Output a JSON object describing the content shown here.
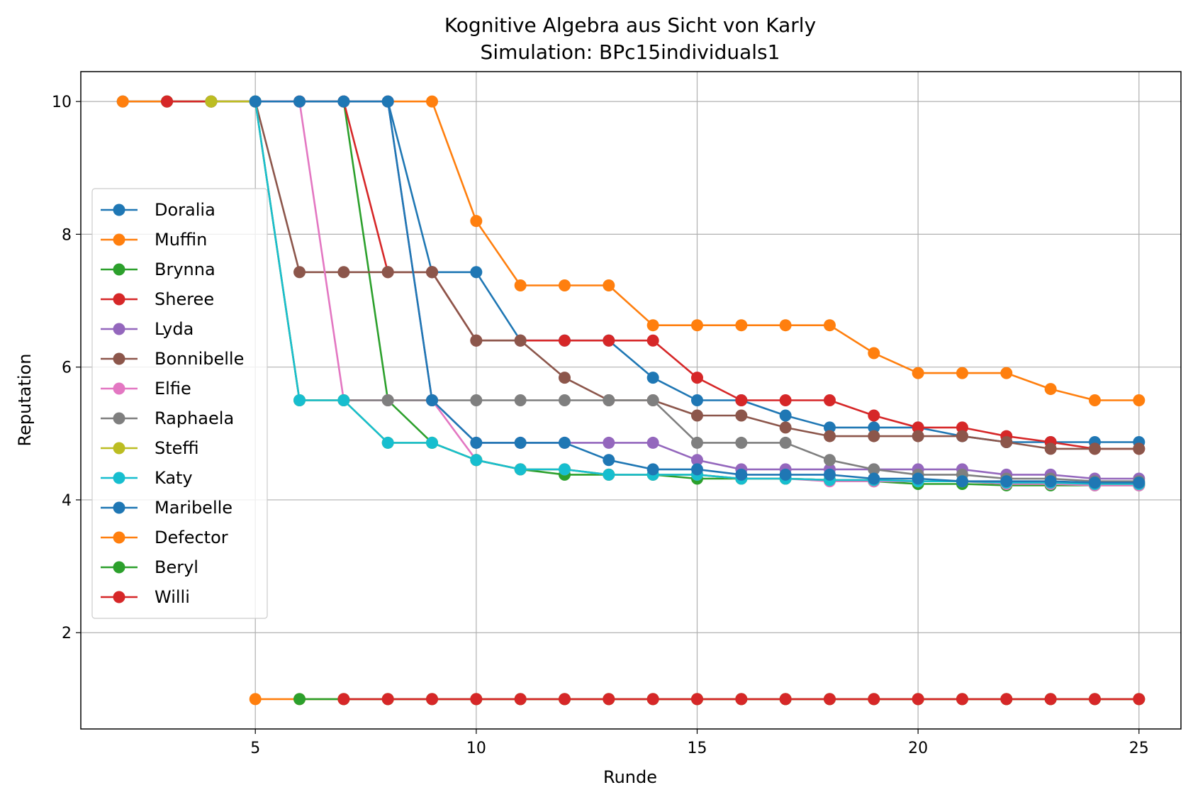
{
  "chart_data": {
    "type": "line",
    "title": "Kognitive Algebra aus Sicht von Karly",
    "subtitle": "Simulation: BPc15individuals1",
    "xlabel": "Runde",
    "ylabel": "Reputation",
    "xlim": [
      1.05,
      25.95
    ],
    "ylim": [
      0.55,
      10.45
    ],
    "xticks": [
      5,
      10,
      15,
      20,
      25
    ],
    "yticks": [
      2,
      4,
      6,
      8,
      10
    ],
    "grid": true,
    "legend_position": "center-left",
    "series": [
      {
        "name": "Doralia",
        "color": "#1f77b4",
        "x": [
          2,
          3,
          4,
          5,
          6,
          7,
          8,
          9,
          10,
          11,
          12,
          13,
          14,
          15,
          16,
          17,
          18,
          19,
          20,
          21,
          22,
          23,
          24,
          25
        ],
        "y": [
          10,
          10,
          10,
          10,
          10,
          10,
          10,
          7.43,
          7.43,
          6.4,
          6.4,
          6.4,
          5.84,
          5.5,
          5.5,
          5.27,
          5.09,
          5.09,
          5.09,
          4.96,
          4.87,
          4.87,
          4.87,
          4.87
        ]
      },
      {
        "name": "Muffin",
        "color": "#ff7f0e",
        "x": [
          2,
          3,
          4,
          5,
          6,
          7,
          8,
          9,
          10,
          11,
          12,
          13,
          14,
          15,
          16,
          17,
          18,
          19,
          20,
          21,
          22,
          23,
          24,
          25
        ],
        "y": [
          10,
          10,
          10,
          10,
          10,
          10,
          10,
          10,
          8.2,
          7.23,
          7.23,
          7.23,
          6.63,
          6.63,
          6.63,
          6.63,
          6.63,
          6.21,
          5.91,
          5.91,
          5.91,
          5.67,
          5.5,
          5.5
        ]
      },
      {
        "name": "Brynna",
        "color": "#2ca02c",
        "x": [
          3,
          4,
          5,
          6,
          7,
          8,
          9,
          10,
          11,
          12,
          13,
          14,
          15,
          16,
          17,
          18,
          19,
          20,
          21,
          22,
          23,
          24,
          25
        ],
        "y": [
          10,
          10,
          10,
          10,
          10,
          5.5,
          4.86,
          4.6,
          4.46,
          4.38,
          4.38,
          4.38,
          4.32,
          4.32,
          4.32,
          4.3,
          4.28,
          4.24,
          4.24,
          4.22,
          4.22,
          4.22,
          4.22
        ]
      },
      {
        "name": "Sheree",
        "color": "#d62728",
        "x": [
          3,
          4,
          5,
          6,
          7,
          8,
          9,
          10,
          11,
          12,
          13,
          14,
          15,
          16,
          17,
          18,
          19,
          20,
          21,
          22,
          23,
          24,
          25
        ],
        "y": [
          10,
          10,
          10,
          10,
          10,
          7.43,
          7.43,
          6.4,
          6.4,
          6.4,
          6.4,
          6.4,
          5.84,
          5.5,
          5.5,
          5.5,
          5.27,
          5.09,
          5.09,
          4.96,
          4.87,
          4.77,
          4.77
        ]
      },
      {
        "name": "Lyda",
        "color": "#9467bd",
        "x": [
          4,
          5,
          6,
          7,
          8,
          9,
          10,
          11,
          12,
          13,
          14,
          15,
          16,
          17,
          18,
          19,
          20,
          21,
          22,
          23,
          24,
          25
        ],
        "y": [
          10,
          10,
          10,
          10,
          10,
          5.5,
          4.86,
          4.86,
          4.86,
          4.86,
          4.86,
          4.6,
          4.46,
          4.46,
          4.46,
          4.46,
          4.46,
          4.46,
          4.38,
          4.38,
          4.32,
          4.32
        ]
      },
      {
        "name": "Bonnibelle",
        "color": "#8c564b",
        "x": [
          4,
          5,
          6,
          7,
          8,
          9,
          10,
          11,
          12,
          13,
          14,
          15,
          16,
          17,
          18,
          19,
          20,
          21,
          22,
          23,
          24,
          25
        ],
        "y": [
          10,
          10,
          7.43,
          7.43,
          7.43,
          7.43,
          6.4,
          6.4,
          5.84,
          5.5,
          5.5,
          5.27,
          5.27,
          5.09,
          4.96,
          4.96,
          4.96,
          4.96,
          4.87,
          4.77,
          4.77,
          4.77
        ]
      },
      {
        "name": "Elfie",
        "color": "#e377c2",
        "x": [
          5,
          6,
          7,
          8,
          9,
          10,
          11,
          12,
          13,
          14,
          15,
          16,
          17,
          18,
          19,
          20,
          21,
          22,
          23,
          24,
          25
        ],
        "y": [
          10,
          10,
          5.5,
          5.5,
          5.5,
          4.6,
          4.46,
          4.46,
          4.38,
          4.38,
          4.38,
          4.32,
          4.32,
          4.28,
          4.28,
          4.28,
          4.28,
          4.24,
          4.24,
          4.22,
          4.22
        ]
      },
      {
        "name": "Raphaela",
        "color": "#7f7f7f",
        "x": [
          5,
          6,
          7,
          8,
          9,
          10,
          11,
          12,
          13,
          14,
          15,
          16,
          17,
          18,
          19,
          20,
          21,
          22,
          23,
          24,
          25
        ],
        "y": [
          10,
          5.5,
          5.5,
          5.5,
          5.5,
          5.5,
          5.5,
          5.5,
          5.5,
          5.5,
          4.86,
          4.86,
          4.86,
          4.6,
          4.46,
          4.38,
          4.38,
          4.32,
          4.32,
          4.28,
          4.28
        ]
      },
      {
        "name": "Steffi",
        "color": "#bcbd22",
        "x": [
          4,
          5,
          6,
          7,
          8,
          9,
          10,
          11,
          12,
          13,
          14,
          15,
          16,
          17,
          18,
          19,
          20,
          21,
          22,
          23,
          24,
          25
        ],
        "y": [
          10,
          10,
          5.5,
          5.5,
          4.86,
          4.86,
          4.6,
          4.46,
          4.46,
          4.38,
          4.38,
          4.38,
          4.32,
          4.32,
          4.3,
          4.3,
          4.28,
          4.28,
          4.26,
          4.26,
          4.24,
          4.24
        ]
      },
      {
        "name": "Katy",
        "color": "#17becf",
        "x": [
          5,
          6,
          7,
          8,
          9,
          10,
          11,
          12,
          13,
          14,
          15,
          16,
          17,
          18,
          19,
          20,
          21,
          22,
          23,
          24,
          25
        ],
        "y": [
          10,
          5.5,
          5.5,
          4.86,
          4.86,
          4.6,
          4.46,
          4.46,
          4.38,
          4.38,
          4.38,
          4.32,
          4.32,
          4.3,
          4.3,
          4.28,
          4.28,
          4.26,
          4.26,
          4.24,
          4.24
        ]
      },
      {
        "name": "Maribelle",
        "color": "#1f77b4",
        "x": [
          5,
          6,
          7,
          8,
          9,
          10,
          11,
          12,
          13,
          14,
          15,
          16,
          17,
          18,
          19,
          20,
          21,
          22,
          23,
          24,
          25
        ],
        "y": [
          10,
          10,
          10,
          10,
          5.5,
          4.86,
          4.86,
          4.86,
          4.6,
          4.46,
          4.46,
          4.38,
          4.38,
          4.38,
          4.32,
          4.32,
          4.28,
          4.28,
          4.28,
          4.26,
          4.26
        ]
      },
      {
        "name": "Defector",
        "color": "#ff7f0e",
        "x": [
          5,
          6,
          7,
          8,
          9,
          10,
          11,
          12,
          13,
          14,
          15,
          16,
          17,
          18,
          19,
          20,
          21,
          22,
          23,
          24,
          25
        ],
        "y": [
          1,
          1,
          1,
          1,
          1,
          1,
          1,
          1,
          1,
          1,
          1,
          1,
          1,
          1,
          1,
          1,
          1,
          1,
          1,
          1,
          1
        ]
      },
      {
        "name": "Beryl",
        "color": "#2ca02c",
        "x": [
          6,
          7,
          8,
          9,
          10,
          11,
          12,
          13,
          14,
          15,
          16,
          17,
          18,
          19,
          20,
          21,
          22,
          23,
          24,
          25
        ],
        "y": [
          1,
          1,
          1,
          1,
          1,
          1,
          1,
          1,
          1,
          1,
          1,
          1,
          1,
          1,
          1,
          1,
          1,
          1,
          1,
          1
        ]
      },
      {
        "name": "Willi",
        "color": "#d62728",
        "x": [
          7,
          8,
          9,
          10,
          11,
          12,
          13,
          14,
          15,
          16,
          17,
          18,
          19,
          20,
          21,
          22,
          23,
          24,
          25
        ],
        "y": [
          1,
          1,
          1,
          1,
          1,
          1,
          1,
          1,
          1,
          1,
          1,
          1,
          1,
          1,
          1,
          1,
          1,
          1,
          1
        ]
      }
    ]
  }
}
